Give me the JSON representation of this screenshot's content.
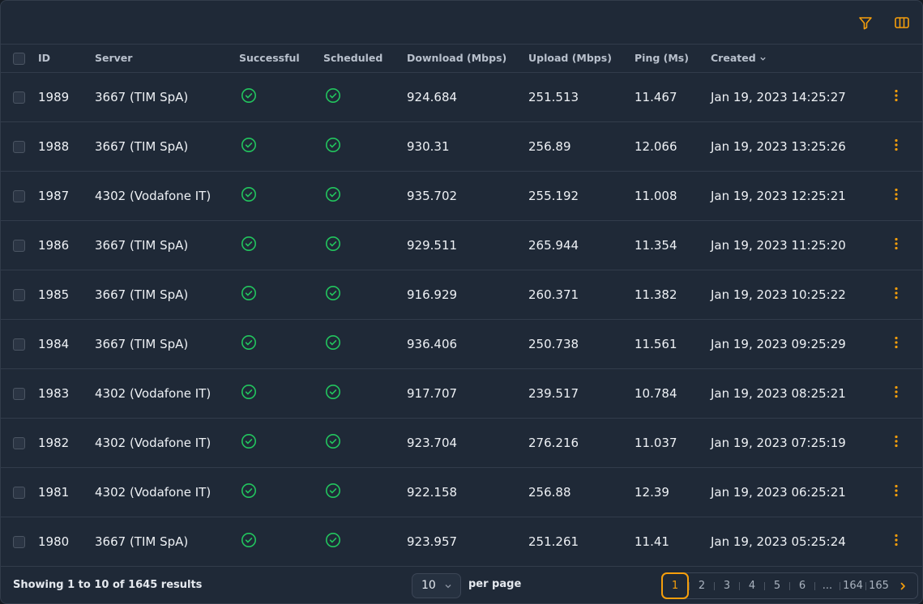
{
  "toolbar": {
    "filter_icon": "filter-icon",
    "columns_icon": "columns-icon",
    "accent": "#f59e0b"
  },
  "table": {
    "columns": [
      "ID",
      "Server",
      "Successful",
      "Scheduled",
      "Download (Mbps)",
      "Upload (Mbps)",
      "Ping (Ms)",
      "Created"
    ],
    "rows": [
      {
        "id": "1989",
        "server": "3667 (TIM SpA)",
        "download": "924.684",
        "upload": "251.513",
        "ping": "11.467",
        "created": "Jan 19, 2023 14:25:27"
      },
      {
        "id": "1988",
        "server": "3667 (TIM SpA)",
        "download": "930.31",
        "upload": "256.89",
        "ping": "12.066",
        "created": "Jan 19, 2023 13:25:26"
      },
      {
        "id": "1987",
        "server": "4302 (Vodafone IT)",
        "download": "935.702",
        "upload": "255.192",
        "ping": "11.008",
        "created": "Jan 19, 2023 12:25:21"
      },
      {
        "id": "1986",
        "server": "3667 (TIM SpA)",
        "download": "929.511",
        "upload": "265.944",
        "ping": "11.354",
        "created": "Jan 19, 2023 11:25:20"
      },
      {
        "id": "1985",
        "server": "3667 (TIM SpA)",
        "download": "916.929",
        "upload": "260.371",
        "ping": "11.382",
        "created": "Jan 19, 2023 10:25:22"
      },
      {
        "id": "1984",
        "server": "3667 (TIM SpA)",
        "download": "936.406",
        "upload": "250.738",
        "ping": "11.561",
        "created": "Jan 19, 2023 09:25:29"
      },
      {
        "id": "1983",
        "server": "4302 (Vodafone IT)",
        "download": "917.707",
        "upload": "239.517",
        "ping": "10.784",
        "created": "Jan 19, 2023 08:25:21"
      },
      {
        "id": "1982",
        "server": "4302 (Vodafone IT)",
        "download": "923.704",
        "upload": "276.216",
        "ping": "11.037",
        "created": "Jan 19, 2023 07:25:19"
      },
      {
        "id": "1981",
        "server": "4302 (Vodafone IT)",
        "download": "922.158",
        "upload": "256.88",
        "ping": "12.39",
        "created": "Jan 19, 2023 06:25:21"
      },
      {
        "id": "1980",
        "server": "3667 (TIM SpA)",
        "download": "923.957",
        "upload": "251.261",
        "ping": "11.41",
        "created": "Jan 19, 2023 05:25:24"
      }
    ],
    "status_color": "#22c55e",
    "row_action_icon": "kebab-menu-icon"
  },
  "footer": {
    "results_text": "Showing 1 to 10 of 1645 results",
    "per_page_value": "10",
    "per_page_label": "per page",
    "pages": [
      "1",
      "2",
      "3",
      "4",
      "5",
      "6",
      "...",
      "164",
      "165"
    ],
    "current_page": "1"
  }
}
